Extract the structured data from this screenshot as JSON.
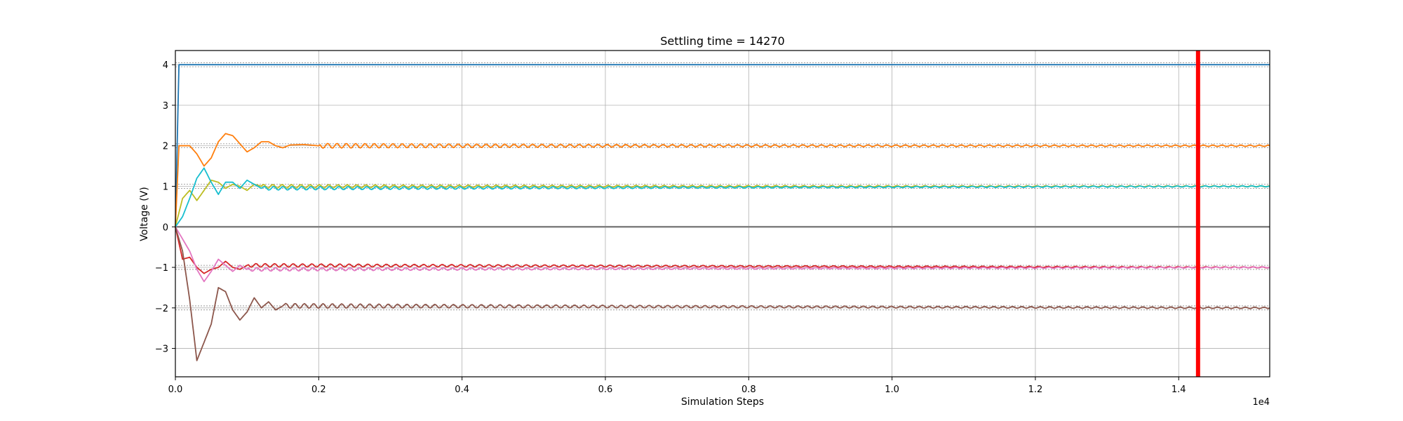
{
  "chart_data": {
    "type": "line",
    "title": "Settling time = 14270",
    "xlabel": "Simulation Steps",
    "ylabel": "Voltage (V)",
    "x_offset_text": "1e4",
    "xlim": [
      0,
      15270
    ],
    "ylim": [
      -3.7,
      4.35
    ],
    "x_ticks": [
      0,
      2000,
      4000,
      6000,
      8000,
      10000,
      12000,
      14000
    ],
    "x_tick_labels": [
      "0.0",
      "0.2",
      "0.4",
      "0.6",
      "0.8",
      "1.0",
      "1.2",
      "1.4"
    ],
    "y_ticks": [
      -3,
      -2,
      -1,
      0,
      1,
      2,
      3,
      4
    ],
    "y_tick_labels": [
      "−3",
      "−2",
      "−1",
      "0",
      "1",
      "2",
      "3",
      "4"
    ],
    "grid": true,
    "settling_time": 14270,
    "settling_marker_color": "#ff0000",
    "tolerance_band": 0.05,
    "series": [
      {
        "target": 4,
        "color": "#1f77b4",
        "points": [
          [
            0,
            0
          ],
          [
            50,
            4.0
          ],
          [
            15270,
            4.0
          ]
        ]
      },
      {
        "target": 2,
        "color": "#ff7f0e",
        "points": [
          [
            0,
            0
          ],
          [
            50,
            2.0
          ],
          [
            120,
            2.0
          ],
          [
            200,
            2.0
          ],
          [
            300,
            1.8
          ],
          [
            400,
            1.5
          ],
          [
            500,
            1.7
          ],
          [
            600,
            2.1
          ],
          [
            700,
            2.3
          ],
          [
            800,
            2.25
          ],
          [
            900,
            2.05
          ],
          [
            1000,
            1.85
          ],
          [
            1100,
            1.95
          ],
          [
            1200,
            2.1
          ],
          [
            1300,
            2.1
          ],
          [
            1400,
            2.0
          ],
          [
            1500,
            1.95
          ],
          [
            1600,
            2.02
          ],
          [
            1800,
            2.03
          ],
          [
            2000,
            2.0
          ],
          [
            15270,
            2.0
          ]
        ]
      },
      {
        "target": 1,
        "color": "#bcbd22",
        "points": [
          [
            0,
            0
          ],
          [
            100,
            0.7
          ],
          [
            200,
            0.9
          ],
          [
            300,
            0.65
          ],
          [
            400,
            0.9
          ],
          [
            500,
            1.15
          ],
          [
            600,
            1.1
          ],
          [
            700,
            0.95
          ],
          [
            800,
            1.05
          ],
          [
            900,
            1.0
          ],
          [
            1000,
            0.9
          ],
          [
            1100,
            1.05
          ],
          [
            1200,
            1.0
          ],
          [
            15270,
            1.0
          ]
        ]
      },
      {
        "target": 1,
        "color": "#17becf",
        "points": [
          [
            0,
            0
          ],
          [
            100,
            0.25
          ],
          [
            200,
            0.7
          ],
          [
            300,
            1.2
          ],
          [
            400,
            1.45
          ],
          [
            500,
            1.1
          ],
          [
            600,
            0.8
          ],
          [
            700,
            1.1
          ],
          [
            800,
            1.1
          ],
          [
            900,
            0.95
          ],
          [
            1000,
            1.15
          ],
          [
            1100,
            1.05
          ],
          [
            1200,
            0.95
          ],
          [
            15270,
            1.0
          ]
        ]
      },
      {
        "target": -1,
        "color": "#d62728",
        "points": [
          [
            0,
            0
          ],
          [
            100,
            -0.8
          ],
          [
            200,
            -0.75
          ],
          [
            300,
            -1.0
          ],
          [
            400,
            -1.15
          ],
          [
            500,
            -1.05
          ],
          [
            600,
            -1.0
          ],
          [
            700,
            -0.85
          ],
          [
            800,
            -1.0
          ],
          [
            900,
            -1.05
          ],
          [
            1000,
            -0.95
          ],
          [
            15270,
            -1.0
          ]
        ]
      },
      {
        "target": -1,
        "color": "#e377c2",
        "points": [
          [
            0,
            0
          ],
          [
            100,
            -0.3
          ],
          [
            200,
            -0.6
          ],
          [
            300,
            -1.05
          ],
          [
            400,
            -1.35
          ],
          [
            500,
            -1.1
          ],
          [
            600,
            -0.8
          ],
          [
            700,
            -0.95
          ],
          [
            800,
            -1.1
          ],
          [
            900,
            -0.95
          ],
          [
            1000,
            -1.05
          ],
          [
            15270,
            -1.0
          ]
        ]
      },
      {
        "target": -2,
        "color": "#8c564b",
        "points": [
          [
            0,
            0
          ],
          [
            100,
            -0.6
          ],
          [
            200,
            -1.8
          ],
          [
            300,
            -3.3
          ],
          [
            400,
            -2.85
          ],
          [
            500,
            -2.4
          ],
          [
            600,
            -1.5
          ],
          [
            700,
            -1.6
          ],
          [
            800,
            -2.05
          ],
          [
            900,
            -2.3
          ],
          [
            1000,
            -2.1
          ],
          [
            1100,
            -1.75
          ],
          [
            1200,
            -2.0
          ],
          [
            1300,
            -1.85
          ],
          [
            1400,
            -2.05
          ],
          [
            1500,
            -1.95
          ],
          [
            15270,
            -2.0
          ]
        ]
      }
    ]
  }
}
